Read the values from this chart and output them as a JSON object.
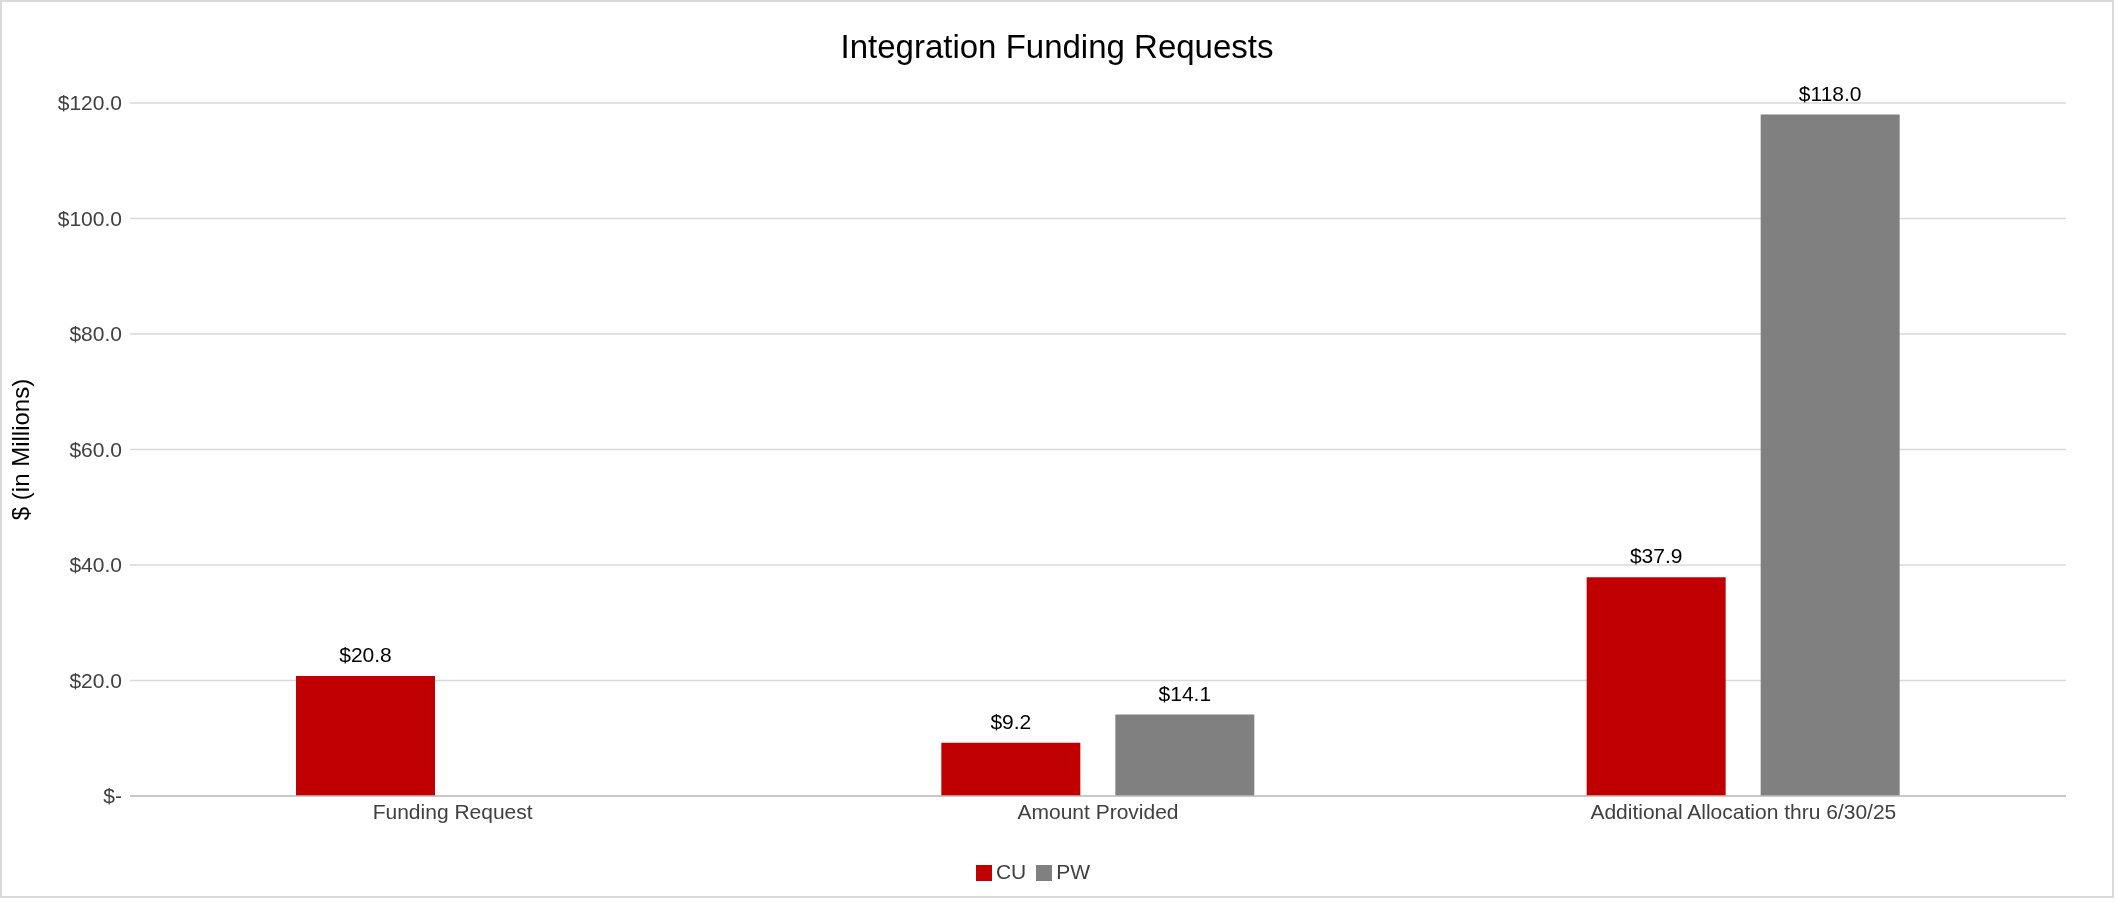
{
  "chart_data": {
    "type": "bar",
    "title": "Integration Funding Requests",
    "ylabel": "$ (in Millions)",
    "categories": [
      "Funding Request",
      "Amount Provided",
      "Additional Allocation thru 6/30/25"
    ],
    "series": [
      {
        "name": "CU",
        "color": "#c00000",
        "values": [
          20.8,
          9.2,
          37.9
        ],
        "value_labels": [
          "$20.8",
          "$9.2",
          "$37.9"
        ]
      },
      {
        "name": "PW",
        "color": "#808080",
        "values": [
          null,
          14.1,
          118.0
        ],
        "value_labels": [
          null,
          "$14.1",
          "$118.0"
        ]
      }
    ],
    "ylim": [
      0,
      120
    ],
    "yticks": [
      {
        "value": 0,
        "label": "$-"
      },
      {
        "value": 20,
        "label": "$20.0"
      },
      {
        "value": 40,
        "label": "$40.0"
      },
      {
        "value": 60,
        "label": "$60.0"
      },
      {
        "value": 80,
        "label": "$80.0"
      },
      {
        "value": 100,
        "label": "$100.0"
      },
      {
        "value": 120,
        "label": "$120.0"
      }
    ],
    "grid": "y",
    "legend": "bottom"
  }
}
